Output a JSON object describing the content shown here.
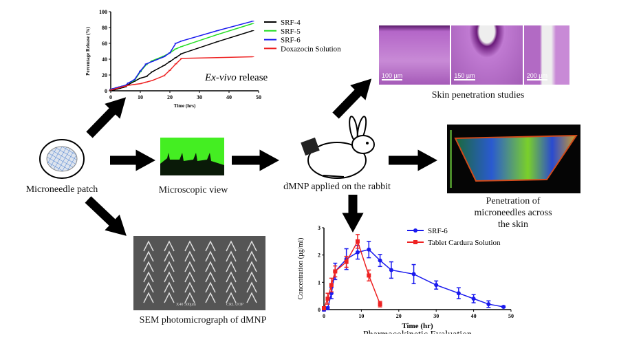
{
  "labels": {
    "patch": "Microneedle patch",
    "microscopic": "Microscopic view",
    "rabbit": "dMNP applied on the rabbit",
    "skin": "Skin penetration studies",
    "penetration": [
      "Penetration of",
      "microneedles across",
      "the skin"
    ],
    "sem": "SEM photomicrograph of dMNP",
    "pk": "Pharmacokinetic Evaluation"
  },
  "skin_scale_bars": [
    "100 µm",
    "150 µm",
    "200 µm"
  ],
  "sem_caption": {
    "mag": "X40 500µm",
    "lab": "CRL UOP"
  },
  "colors": {
    "srf4": "#000000",
    "srf5": "#22dd22",
    "srf6": "#1a1aee",
    "doxa": "#ee2222",
    "skin": "#b466c8",
    "green": "#44ee22"
  },
  "chart_data": [
    {
      "type": "line",
      "title": "Ex-vivo release",
      "title_italic": "Ex-vivo",
      "title_rest": " release",
      "xlabel": "Time (hrs)",
      "ylabel": "Percentage Release (%)",
      "xlim": [
        0,
        50
      ],
      "ylim": [
        0,
        100
      ],
      "xticks": [
        0,
        10,
        20,
        30,
        40,
        50
      ],
      "yticks": [
        0,
        20,
        40,
        60,
        80,
        100
      ],
      "legend": "right",
      "x": [
        0,
        1,
        2,
        3,
        4,
        5,
        6,
        8,
        10,
        12,
        14,
        18,
        20,
        22,
        24,
        36,
        48
      ],
      "series": [
        {
          "name": "SRF-4",
          "color": "#000000",
          "values": [
            0,
            1,
            2,
            3,
            4,
            5,
            8,
            12,
            16,
            18,
            24,
            32,
            37,
            42,
            47,
            62,
            76
          ]
        },
        {
          "name": "SRF-5",
          "color": "#22dd22",
          "values": [
            2,
            3,
            4,
            5,
            6,
            7,
            10,
            13,
            24,
            33,
            38,
            44,
            48,
            53,
            56,
            71,
            85
          ]
        },
        {
          "name": "SRF-6",
          "color": "#1a1aee",
          "values": [
            2,
            3,
            4,
            5,
            6,
            7,
            10,
            14,
            25,
            34,
            37,
            43,
            48,
            60,
            63,
            76,
            88
          ]
        },
        {
          "name": "Doxazocin Solution",
          "color": "#ee2222",
          "values": [
            1,
            2,
            3,
            4,
            5,
            6,
            7,
            8,
            9,
            11,
            13,
            19,
            26,
            34,
            41,
            42,
            43
          ]
        }
      ]
    },
    {
      "type": "line",
      "title": "Pharmacokinetic Evaluation",
      "xlabel": "Time (hr)",
      "ylabel": "Concentration (µg/ml)",
      "xlim": [
        0,
        50
      ],
      "ylim": [
        0,
        3
      ],
      "xticks": [
        0,
        10,
        20,
        30,
        40,
        50
      ],
      "yticks": [
        0,
        1,
        2,
        3
      ],
      "legend": "top-right",
      "series": [
        {
          "name": "SRF-6",
          "color": "#1a1aee",
          "marker": "circle",
          "x": [
            0,
            1,
            2,
            3,
            6,
            9,
            12,
            15,
            18,
            24,
            30,
            36,
            40,
            44,
            48
          ],
          "values": [
            0,
            0.05,
            0.6,
            1.4,
            1.85,
            2.1,
            2.2,
            1.8,
            1.45,
            1.3,
            0.9,
            0.6,
            0.4,
            0.2,
            0.1
          ],
          "error": [
            0.05,
            0.05,
            0.2,
            0.3,
            0.38,
            0.25,
            0.3,
            0.22,
            0.3,
            0.35,
            0.15,
            0.2,
            0.15,
            0.12,
            0.03
          ]
        },
        {
          "name": "Tablet Cardura Solution",
          "color": "#ee2222",
          "marker": "square",
          "x": [
            0,
            1,
            2,
            3,
            6,
            9,
            12,
            15
          ],
          "values": [
            0.05,
            0.4,
            0.9,
            1.4,
            1.75,
            2.5,
            1.25,
            0.2
          ],
          "error": [
            0.05,
            0.2,
            0.25,
            0.2,
            0.2,
            0.25,
            0.2,
            0.1
          ]
        }
      ]
    }
  ]
}
